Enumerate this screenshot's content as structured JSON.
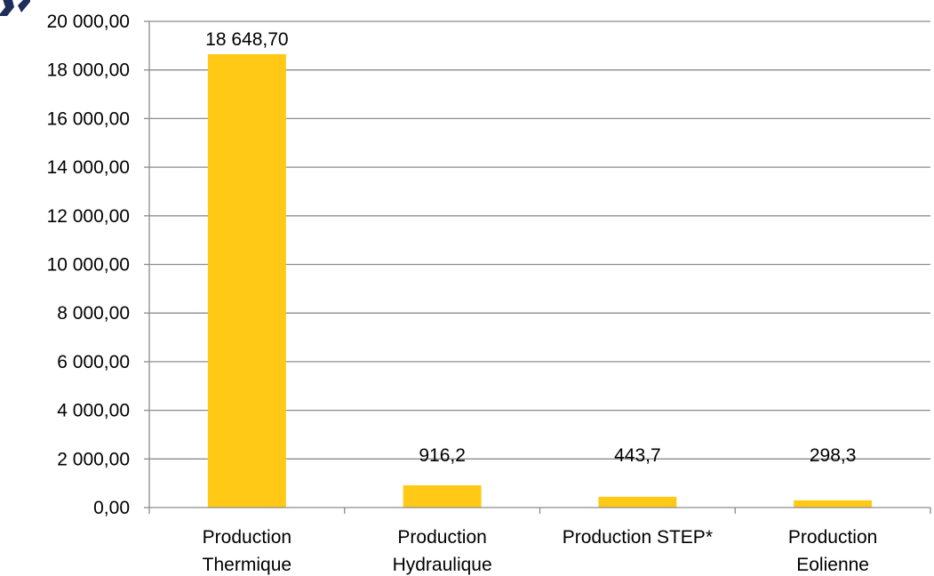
{
  "chart_data": {
    "type": "bar",
    "categories": [
      [
        "Production",
        "Thermique"
      ],
      [
        "Production",
        "Hydraulique"
      ],
      [
        "Production STEP*"
      ],
      [
        "Production",
        "Eolienne"
      ]
    ],
    "values": [
      18648.7,
      916.2,
      443.7,
      298.3
    ],
    "data_labels": [
      "18 648,70",
      "916,2",
      "443,7",
      "298,3"
    ],
    "ylim": [
      0,
      20000
    ],
    "yticks": [
      0,
      2000,
      4000,
      6000,
      8000,
      10000,
      12000,
      14000,
      16000,
      18000,
      20000
    ],
    "ytick_labels": [
      "0,00",
      "2 000,00",
      "4 000,00",
      "6 000,00",
      "8 000,00",
      "10 000,00",
      "12 000,00",
      "14 000,00",
      "16 000,00",
      "18 000,00",
      "20 000,00"
    ],
    "grid": true,
    "legend": "none",
    "colors": {
      "bar": "#FFC916",
      "grid": "#8C8C8C",
      "axis": "#8C8C8C",
      "corner_mark": "#1F2D5A"
    }
  }
}
